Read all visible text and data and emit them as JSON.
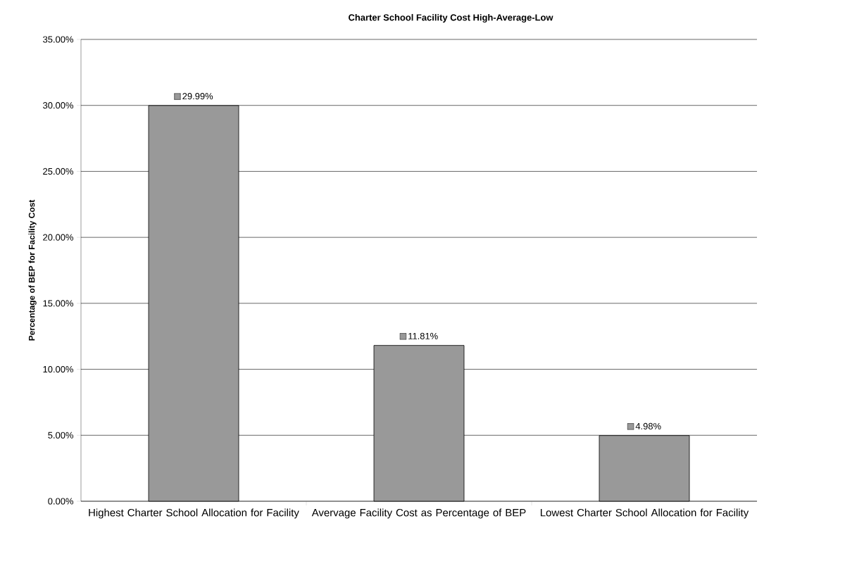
{
  "chart_data": {
    "type": "bar",
    "title": "Charter School Facility Cost High-Average-Low",
    "ylabel": "Percentage of BEP for Facility Cost",
    "categories": [
      "Highest Charter School Allocation for Facility",
      "Avervage Facility Cost as Percentage of BEP",
      "Lowest Charter School Allocation for Facility"
    ],
    "values": [
      29.99,
      11.81,
      4.98
    ],
    "value_labels": [
      "29.99%",
      "11.81%",
      "4.98%"
    ],
    "color": "#999999",
    "ylim": [
      0,
      35
    ],
    "yticks": [
      {
        "value": 0,
        "label": "0.00%"
      },
      {
        "value": 5,
        "label": "5.00%"
      },
      {
        "value": 10,
        "label": "10.00%"
      },
      {
        "value": 15,
        "label": "15.00%"
      },
      {
        "value": 20,
        "label": "20.00%"
      },
      {
        "value": 25,
        "label": "25.00%"
      },
      {
        "value": 30,
        "label": "30.00%"
      },
      {
        "value": 35,
        "label": "35.00%"
      }
    ],
    "grid": "y"
  }
}
